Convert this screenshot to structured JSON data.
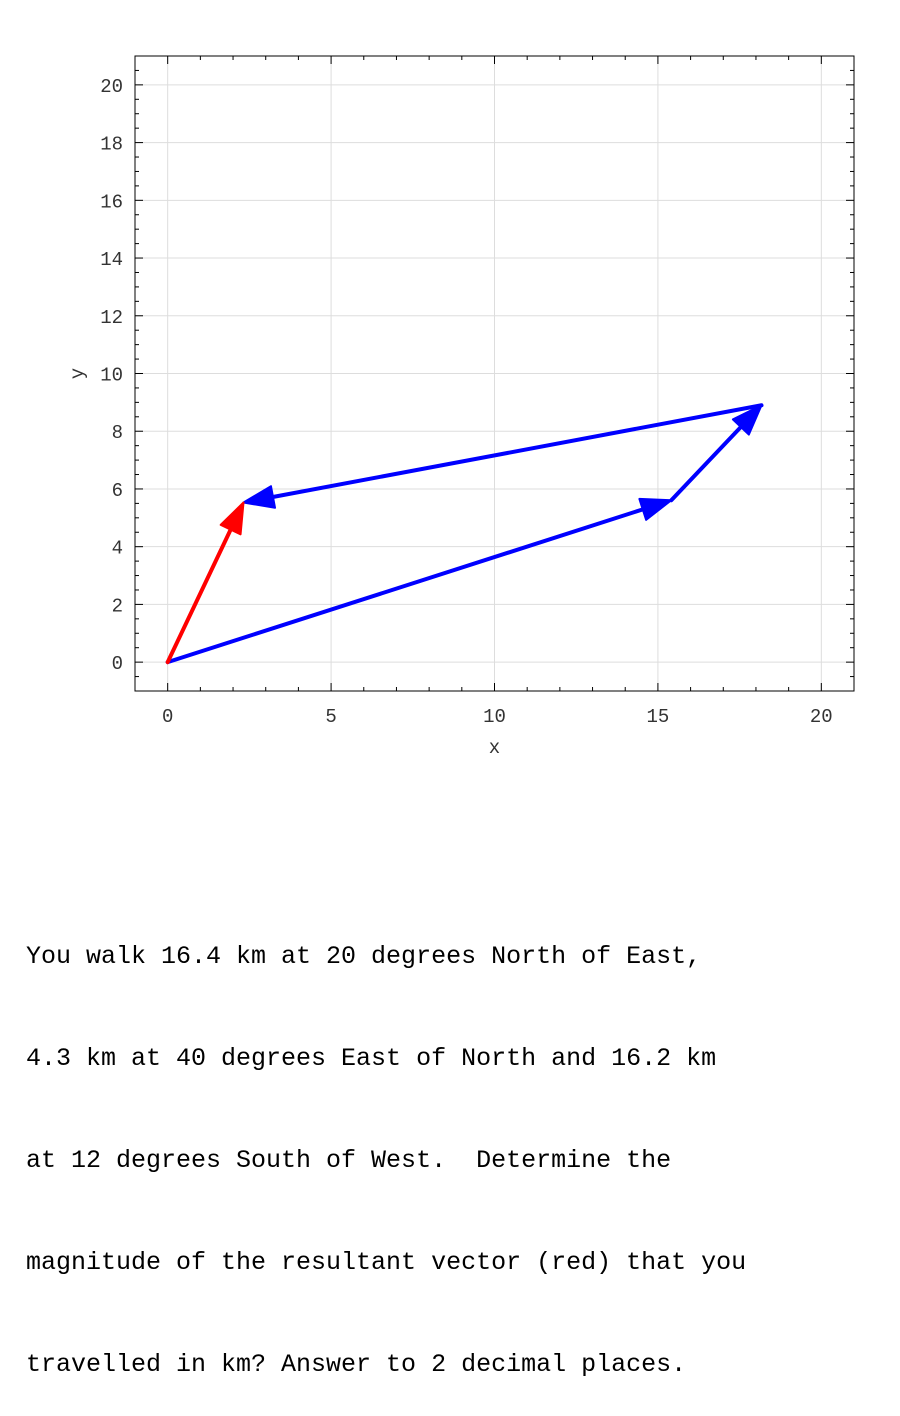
{
  "chart_data": {
    "type": "vector-diagram",
    "xlabel": "x",
    "ylabel": "y",
    "xlim": [
      -1,
      21
    ],
    "ylim": [
      -1,
      21
    ],
    "xticks": [
      0,
      5,
      10,
      15,
      20
    ],
    "yticks": [
      0,
      2,
      4,
      6,
      8,
      10,
      12,
      14,
      16,
      18,
      20
    ],
    "grid": true,
    "vectors": [
      {
        "from": [
          0,
          0
        ],
        "to": [
          15.41,
          5.61
        ],
        "color": "#0000ff"
      },
      {
        "from": [
          15.41,
          5.61
        ],
        "to": [
          18.17,
          8.9
        ],
        "color": "#0000ff"
      },
      {
        "from": [
          18.17,
          8.9
        ],
        "to": [
          2.32,
          5.53
        ],
        "color": "#0000ff"
      },
      {
        "from": [
          0,
          0
        ],
        "to": [
          2.32,
          5.53
        ],
        "color": "#ff0000"
      }
    ]
  },
  "question": {
    "lines": [
      "You walk 16.4 km at 20 degrees North of East,",
      "4.3 km at 40 degrees East of North and 16.2 km",
      "at 12 degrees South of West.  Determine the",
      "magnitude of the resultant vector (red) that you",
      "travelled in km? Answer to 2 decimal places."
    ]
  }
}
